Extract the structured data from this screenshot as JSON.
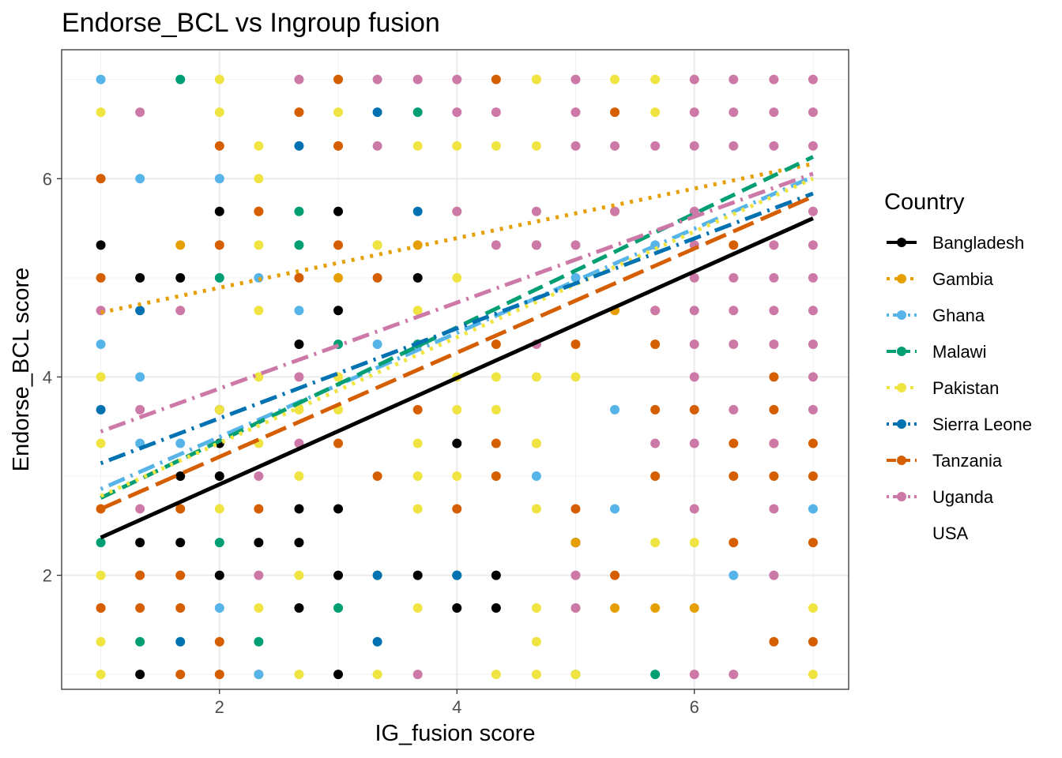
{
  "chart_data": {
    "type": "scatter",
    "title": "Endorse_BCL vs Ingroup fusion",
    "xlabel": "IG_fusion score",
    "ylabel": "Endorse_BCL score",
    "xlim": [
      0.67,
      7.3
    ],
    "ylim": [
      0.85,
      7.3
    ],
    "xticks": [
      2,
      4,
      6
    ],
    "yticks": [
      2,
      4,
      6
    ],
    "xtick_labels": [
      "2",
      "4",
      "6"
    ],
    "ytick_labels": [
      "2",
      "4",
      "6"
    ],
    "grid": true,
    "legend": {
      "title": "Country",
      "position": "right"
    },
    "series": [
      {
        "name": "Bangladesh",
        "color": "#000000",
        "dash": "solid",
        "trend": {
          "x": [
            1,
            7
          ],
          "y": [
            2.38,
            5.6
          ]
        },
        "points": [
          [
            1,
            5.33
          ],
          [
            1.33,
            5
          ],
          [
            1.67,
            5
          ],
          [
            2,
            5.67
          ],
          [
            2.67,
            4.33
          ],
          [
            3,
            5.67
          ],
          [
            3,
            4.67
          ],
          [
            3.67,
            5
          ],
          [
            1.67,
            3
          ],
          [
            2,
            3.67
          ],
          [
            2,
            3.33
          ],
          [
            2,
            3
          ],
          [
            1.33,
            2.33
          ],
          [
            1.67,
            2.33
          ],
          [
            2.67,
            2.67
          ],
          [
            3,
            2.67
          ],
          [
            2.33,
            2.33
          ],
          [
            2.67,
            2.33
          ],
          [
            2,
            2
          ],
          [
            3,
            2
          ],
          [
            3.67,
            2
          ],
          [
            4.33,
            2
          ],
          [
            2.67,
            1.67
          ],
          [
            4,
            1.67
          ],
          [
            4.33,
            1.67
          ],
          [
            1.33,
            1
          ],
          [
            3,
            1
          ],
          [
            4,
            3.33
          ],
          [
            5,
            2.33
          ]
        ]
      },
      {
        "name": "Gambia",
        "color": "#E69F00",
        "dash": "dotted",
        "trend": {
          "x": [
            1,
            7
          ],
          "y": [
            4.65,
            6.15
          ]
        },
        "points": [
          [
            1.67,
            5.33
          ],
          [
            2.33,
            5.67
          ],
          [
            3,
            6.33
          ],
          [
            3,
            5
          ],
          [
            4.67,
            7
          ],
          [
            5.33,
            5.67
          ],
          [
            5.33,
            4.67
          ],
          [
            5.67,
            4.67
          ],
          [
            6.67,
            3.33
          ],
          [
            5,
            2.33
          ],
          [
            5.67,
            1.67
          ],
          [
            6,
            1.67
          ],
          [
            5.33,
            1.67
          ],
          [
            1,
            1.67
          ],
          [
            2.33,
            1
          ],
          [
            3.33,
            5.33
          ],
          [
            4.67,
            3.33
          ],
          [
            3.67,
            5.33
          ]
        ]
      },
      {
        "name": "Ghana",
        "color": "#56B4E9",
        "dash": "dotdash",
        "trend": {
          "x": [
            1,
            7
          ],
          "y": [
            2.87,
            6.02
          ]
        },
        "points": [
          [
            1,
            7
          ],
          [
            1.33,
            6
          ],
          [
            2,
            6
          ],
          [
            2.33,
            5
          ],
          [
            1,
            4.33
          ],
          [
            1.33,
            4
          ],
          [
            1.33,
            3.33
          ],
          [
            1.67,
            3.33
          ],
          [
            2,
            1.67
          ],
          [
            2.33,
            1
          ],
          [
            2.67,
            4.67
          ],
          [
            3.33,
            4.33
          ],
          [
            4.67,
            3
          ],
          [
            5.33,
            3.67
          ],
          [
            5.33,
            2.67
          ],
          [
            6.33,
            2
          ],
          [
            7,
            2.67
          ],
          [
            5,
            5
          ],
          [
            5.67,
            5.33
          ]
        ]
      },
      {
        "name": "Malawi",
        "color": "#009E73",
        "dash": "dashed",
        "trend": {
          "x": [
            1,
            7
          ],
          "y": [
            2.78,
            6.22
          ]
        },
        "points": [
          [
            1.67,
            7
          ],
          [
            3.67,
            6.67
          ],
          [
            2.67,
            5.67
          ],
          [
            2.67,
            5.33
          ],
          [
            2,
            5
          ],
          [
            1,
            2.33
          ],
          [
            1.33,
            1.33
          ],
          [
            2.33,
            1.33
          ],
          [
            2,
            2.33
          ],
          [
            3,
            1.67
          ],
          [
            4,
            2
          ],
          [
            5,
            1
          ],
          [
            5.67,
            1
          ],
          [
            3.67,
            4.33
          ],
          [
            3,
            4.33
          ]
        ]
      },
      {
        "name": "Pakistan",
        "color": "#F0E442",
        "dash": "dotted",
        "trend": {
          "x": [
            1,
            7
          ],
          "y": [
            2.8,
            6.0
          ]
        },
        "points": [
          [
            2,
            7
          ],
          [
            4.67,
            7
          ],
          [
            5.33,
            7
          ],
          [
            5.67,
            7
          ],
          [
            1,
            6.67
          ],
          [
            2,
            6.67
          ],
          [
            3,
            6.67
          ],
          [
            5.67,
            6.67
          ],
          [
            2.33,
            6.33
          ],
          [
            3.67,
            6.33
          ],
          [
            4,
            6.33
          ],
          [
            4.33,
            6.33
          ],
          [
            4.67,
            6.33
          ],
          [
            2.33,
            6
          ],
          [
            4,
            5.67
          ],
          [
            2.33,
            5.33
          ],
          [
            3.33,
            5.33
          ],
          [
            4,
            5
          ],
          [
            2.33,
            4.67
          ],
          [
            3.67,
            4.67
          ],
          [
            1,
            4
          ],
          [
            2.33,
            4
          ],
          [
            3,
            4
          ],
          [
            4,
            4
          ],
          [
            4.33,
            4
          ],
          [
            4.67,
            4
          ],
          [
            5,
            4
          ],
          [
            2,
            3.67
          ],
          [
            2.67,
            3.67
          ],
          [
            3,
            3.67
          ],
          [
            4,
            3.67
          ],
          [
            4.33,
            3.67
          ],
          [
            1,
            3.33
          ],
          [
            2.33,
            3.33
          ],
          [
            3.67,
            3.33
          ],
          [
            4.67,
            3.33
          ],
          [
            2.67,
            3
          ],
          [
            3.67,
            3
          ],
          [
            4,
            3
          ],
          [
            2,
            2.67
          ],
          [
            3.67,
            2.67
          ],
          [
            4.67,
            2.67
          ],
          [
            1,
            2
          ],
          [
            2.67,
            2
          ],
          [
            3.33,
            2
          ],
          [
            2.33,
            1.67
          ],
          [
            3.67,
            1.67
          ],
          [
            4.67,
            1.67
          ],
          [
            5,
            1.67
          ],
          [
            7,
            1.67
          ],
          [
            1,
            1.33
          ],
          [
            4.67,
            1.33
          ],
          [
            1,
            1
          ],
          [
            2.67,
            1
          ],
          [
            3.33,
            1
          ],
          [
            4.33,
            1
          ],
          [
            4.67,
            1
          ],
          [
            5,
            1
          ],
          [
            7,
            1
          ],
          [
            5.67,
            2.33
          ],
          [
            6,
            2.33
          ]
        ]
      },
      {
        "name": "Sierra Leone",
        "color": "#0072B2",
        "dash": "dotdash",
        "trend": {
          "x": [
            1,
            7
          ],
          "y": [
            3.13,
            5.85
          ]
        },
        "points": [
          [
            3.33,
            6.67
          ],
          [
            2.67,
            6.33
          ],
          [
            3.67,
            5.67
          ],
          [
            1,
            3.67
          ],
          [
            1.33,
            4.67
          ],
          [
            1.67,
            1.33
          ],
          [
            3.33,
            1.33
          ],
          [
            3.33,
            2
          ],
          [
            4,
            2
          ]
        ]
      },
      {
        "name": "Tanzania",
        "color": "#D55E00",
        "dash": "longdash",
        "trend": {
          "x": [
            1,
            7
          ],
          "y": [
            2.67,
            5.82
          ]
        },
        "points": [
          [
            3,
            7
          ],
          [
            4.33,
            7
          ],
          [
            2.67,
            6.67
          ],
          [
            5.33,
            6.67
          ],
          [
            2,
            6.33
          ],
          [
            3,
            6.33
          ],
          [
            1,
            6
          ],
          [
            2.33,
            5.67
          ],
          [
            2,
            5.33
          ],
          [
            3,
            5.33
          ],
          [
            4.67,
            5.33
          ],
          [
            6.33,
            5.33
          ],
          [
            1,
            5
          ],
          [
            2.67,
            5
          ],
          [
            3.33,
            5
          ],
          [
            4.33,
            4.33
          ],
          [
            5,
            4.33
          ],
          [
            5.67,
            4.33
          ],
          [
            6.67,
            4
          ],
          [
            3.67,
            3.67
          ],
          [
            5.67,
            3.67
          ],
          [
            6,
            3.67
          ],
          [
            6.67,
            3.67
          ],
          [
            3,
            3.33
          ],
          [
            4.33,
            3.33
          ],
          [
            6.33,
            3.33
          ],
          [
            7,
            3.33
          ],
          [
            3.33,
            3
          ],
          [
            4.33,
            3
          ],
          [
            5.67,
            3
          ],
          [
            6.33,
            3
          ],
          [
            6.67,
            3
          ],
          [
            7,
            3
          ],
          [
            1,
            2.67
          ],
          [
            1.67,
            2.67
          ],
          [
            2.33,
            2.67
          ],
          [
            4,
            2.67
          ],
          [
            5,
            2.67
          ],
          [
            6.33,
            2.33
          ],
          [
            7,
            2.33
          ],
          [
            1.33,
            2
          ],
          [
            1.67,
            2
          ],
          [
            5.33,
            2
          ],
          [
            1,
            1.67
          ],
          [
            1.33,
            1.67
          ],
          [
            1.67,
            1.67
          ],
          [
            2,
            1.33
          ],
          [
            6.67,
            1.33
          ],
          [
            7,
            1.33
          ],
          [
            1.67,
            1
          ],
          [
            2,
            1
          ]
        ]
      },
      {
        "name": "Uganda",
        "color": "#CC79A7",
        "dash": "dotdash",
        "trend": {
          "x": [
            1,
            7
          ],
          "y": [
            3.45,
            6.05
          ]
        },
        "points": [
          [
            2.67,
            7
          ],
          [
            3.33,
            7
          ],
          [
            3.67,
            7
          ],
          [
            4,
            7
          ],
          [
            5,
            7
          ],
          [
            6,
            7
          ],
          [
            6.33,
            7
          ],
          [
            6.67,
            7
          ],
          [
            7,
            7
          ],
          [
            1.33,
            6.67
          ],
          [
            4,
            6.67
          ],
          [
            4.33,
            6.67
          ],
          [
            5,
            6.67
          ],
          [
            6,
            6.67
          ],
          [
            6.33,
            6.67
          ],
          [
            6.67,
            6.67
          ],
          [
            7,
            6.67
          ],
          [
            3.33,
            6.33
          ],
          [
            5,
            6.33
          ],
          [
            5.33,
            6.33
          ],
          [
            5.67,
            6.33
          ],
          [
            6,
            6.33
          ],
          [
            6.33,
            6.33
          ],
          [
            6.67,
            6.33
          ],
          [
            7,
            6.33
          ],
          [
            4,
            5.67
          ],
          [
            4.67,
            5.67
          ],
          [
            5.33,
            5.67
          ],
          [
            6,
            5.67
          ],
          [
            7,
            5.67
          ],
          [
            4.33,
            5.33
          ],
          [
            4.67,
            5.33
          ],
          [
            5,
            5.33
          ],
          [
            6,
            5.33
          ],
          [
            6.67,
            5.33
          ],
          [
            7,
            5.33
          ],
          [
            6,
            5
          ],
          [
            6.33,
            5
          ],
          [
            6.67,
            5
          ],
          [
            7,
            5
          ],
          [
            1,
            4.67
          ],
          [
            1.67,
            4.67
          ],
          [
            5.67,
            4.67
          ],
          [
            6,
            4.67
          ],
          [
            6.33,
            4.67
          ],
          [
            6.67,
            4.67
          ],
          [
            7,
            4.67
          ],
          [
            4.67,
            4.33
          ],
          [
            6,
            4.33
          ],
          [
            6.33,
            4.33
          ],
          [
            6.67,
            4.33
          ],
          [
            7,
            4.33
          ],
          [
            2.67,
            4
          ],
          [
            6,
            4
          ],
          [
            7,
            4
          ],
          [
            1.33,
            3.67
          ],
          [
            6.33,
            3.67
          ],
          [
            7,
            3.67
          ],
          [
            2.67,
            3.33
          ],
          [
            5.67,
            3.33
          ],
          [
            6,
            3.33
          ],
          [
            6.67,
            3.33
          ],
          [
            2.33,
            3
          ],
          [
            6,
            2.67
          ],
          [
            6.67,
            2.67
          ],
          [
            2.33,
            2
          ],
          [
            5,
            2
          ],
          [
            6.67,
            2
          ],
          [
            5,
            1.67
          ],
          [
            3.67,
            1
          ],
          [
            6,
            1
          ],
          [
            6.33,
            1
          ],
          [
            1.33,
            2.67
          ]
        ]
      },
      {
        "name": "USA",
        "color": "#999999",
        "dash": "none",
        "points": []
      }
    ]
  }
}
